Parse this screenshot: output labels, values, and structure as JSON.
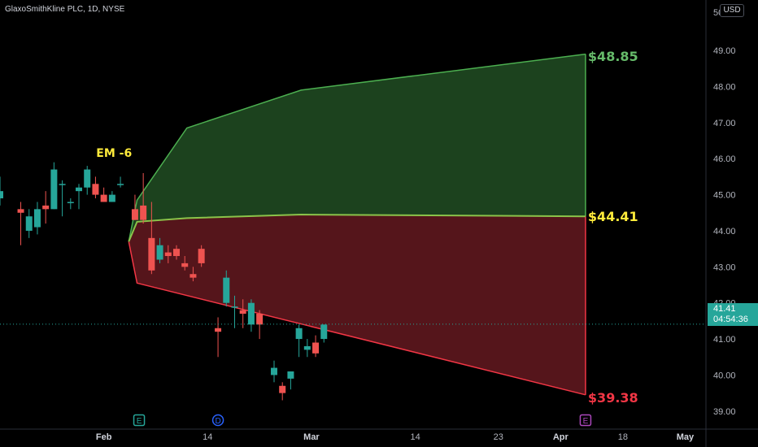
{
  "header": {
    "title": "GlaxoSmithKline PLC, 1D, NYSE",
    "currency": "USD"
  },
  "colors": {
    "background": "#000000",
    "up": "#26a69a",
    "down": "#ef5350",
    "zone_up_fill": "#1e4620",
    "zone_up_line": "#4caf50",
    "zone_down_fill": "#5a161c",
    "zone_down_line": "#f23645",
    "mid_line": "#8bc34a",
    "em_label": "#ffeb3b"
  },
  "chart_data": {
    "type": "candlestick",
    "title": "GlaxoSmithKline PLC, 1D, NYSE",
    "y_axis": {
      "range": [
        38.5,
        50.4
      ],
      "ticks": [
        "39.00",
        "40.00",
        "41.00",
        "42.00",
        "43.00",
        "44.00",
        "45.00",
        "46.00",
        "47.00",
        "48.00",
        "49.00"
      ],
      "top_partial": "50"
    },
    "x_axis": {
      "range": [
        -1,
        33
      ],
      "ticks": [
        {
          "label": "Feb",
          "x": 4,
          "bold": true
        },
        {
          "label": "14",
          "x": 9,
          "bold": false
        },
        {
          "label": "Mar",
          "x": 14,
          "bold": true
        },
        {
          "label": "14",
          "x": 19,
          "bold": false
        },
        {
          "label": "23",
          "x": 23,
          "bold": false
        },
        {
          "label": "Apr",
          "x": 26,
          "bold": true
        },
        {
          "label": "18",
          "x": 29,
          "bold": false
        },
        {
          "label": "May",
          "x": 32,
          "bold": true
        }
      ]
    },
    "candles": [
      {
        "x": -1,
        "o": 44.9,
        "h": 45.5,
        "l": 44.7,
        "c": 45.1
      },
      {
        "x": 0,
        "o": 44.6,
        "h": 44.8,
        "l": 43.6,
        "c": 44.5
      },
      {
        "x": 0.4,
        "o": 44.0,
        "h": 44.6,
        "l": 43.8,
        "c": 44.4
      },
      {
        "x": 0.8,
        "o": 44.1,
        "h": 44.8,
        "l": 43.9,
        "c": 44.6
      },
      {
        "x": 1.2,
        "o": 44.7,
        "h": 45.1,
        "l": 44.2,
        "c": 44.6
      },
      {
        "x": 1.6,
        "o": 44.6,
        "h": 45.9,
        "l": 44.6,
        "c": 45.7
      },
      {
        "x": 2.0,
        "o": 45.3,
        "h": 45.4,
        "l": 44.4,
        "c": 45.3
      },
      {
        "x": 2.4,
        "o": 44.8,
        "h": 44.9,
        "l": 44.6,
        "c": 44.8
      },
      {
        "x": 2.8,
        "o": 45.1,
        "h": 45.3,
        "l": 44.6,
        "c": 45.2
      },
      {
        "x": 3.2,
        "o": 45.2,
        "h": 45.8,
        "l": 45.0,
        "c": 45.7
      },
      {
        "x": 3.6,
        "o": 45.3,
        "h": 45.5,
        "l": 44.9,
        "c": 45.0
      },
      {
        "x": 4.0,
        "o": 45.0,
        "h": 45.2,
        "l": 44.8,
        "c": 44.8
      },
      {
        "x": 4.4,
        "o": 44.8,
        "h": 45.1,
        "l": 44.8,
        "c": 45.0
      },
      {
        "x": 4.8,
        "o": 45.3,
        "h": 45.5,
        "l": 45.2,
        "c": 45.3
      },
      {
        "x": 5.5,
        "o": 44.6,
        "h": 45.0,
        "l": 44.3,
        "c": 44.3
      },
      {
        "x": 5.9,
        "o": 44.7,
        "h": 45.6,
        "l": 44.2,
        "c": 44.3
      },
      {
        "x": 6.3,
        "o": 43.8,
        "h": 44.8,
        "l": 42.8,
        "c": 42.9
      },
      {
        "x": 6.7,
        "o": 43.2,
        "h": 43.8,
        "l": 43.1,
        "c": 43.6
      },
      {
        "x": 7.1,
        "o": 43.4,
        "h": 43.6,
        "l": 43.1,
        "c": 43.3
      },
      {
        "x": 7.5,
        "o": 43.5,
        "h": 43.6,
        "l": 43.2,
        "c": 43.3
      },
      {
        "x": 7.9,
        "o": 43.1,
        "h": 43.3,
        "l": 42.9,
        "c": 43.0
      },
      {
        "x": 8.3,
        "o": 42.8,
        "h": 43.0,
        "l": 42.6,
        "c": 42.7
      },
      {
        "x": 8.7,
        "o": 43.5,
        "h": 43.6,
        "l": 43.0,
        "c": 43.1
      },
      {
        "x": 9.5,
        "o": 41.3,
        "h": 41.6,
        "l": 40.5,
        "c": 41.2
      },
      {
        "x": 9.9,
        "o": 42.0,
        "h": 42.9,
        "l": 41.9,
        "c": 42.7
      },
      {
        "x": 10.3,
        "o": 41.9,
        "h": 42.2,
        "l": 41.3,
        "c": 41.9
      },
      {
        "x": 10.7,
        "o": 41.8,
        "h": 42.1,
        "l": 41.3,
        "c": 41.7
      },
      {
        "x": 11.1,
        "o": 41.4,
        "h": 42.1,
        "l": 41.2,
        "c": 42.0
      },
      {
        "x": 11.5,
        "o": 41.7,
        "h": 41.8,
        "l": 41.0,
        "c": 41.4
      },
      {
        "x": 12.2,
        "o": 40.0,
        "h": 40.4,
        "l": 39.8,
        "c": 40.2
      },
      {
        "x": 12.6,
        "o": 39.7,
        "h": 39.8,
        "l": 39.3,
        "c": 39.5
      },
      {
        "x": 13.0,
        "o": 39.9,
        "h": 40.1,
        "l": 39.6,
        "c": 40.1
      },
      {
        "x": 13.4,
        "o": 41.0,
        "h": 41.4,
        "l": 40.5,
        "c": 41.3
      },
      {
        "x": 13.8,
        "o": 40.7,
        "h": 41.0,
        "l": 40.5,
        "c": 40.8
      },
      {
        "x": 14.2,
        "o": 40.9,
        "h": 41.1,
        "l": 40.5,
        "c": 40.6
      },
      {
        "x": 14.6,
        "o": 41.0,
        "h": 41.4,
        "l": 40.9,
        "c": 41.4
      }
    ],
    "expected_move": {
      "label": "EM -6",
      "start": {
        "x": 5.2,
        "y": 43.7
      },
      "upper": [
        {
          "x": 5.2,
          "y": 43.7
        },
        {
          "x": 5.6,
          "y": 44.85
        },
        {
          "x": 8.0,
          "y": 46.85
        },
        {
          "x": 13.5,
          "y": 47.9
        },
        {
          "x": 27.2,
          "y": 48.9
        }
      ],
      "mid": [
        {
          "x": 5.2,
          "y": 43.7
        },
        {
          "x": 5.6,
          "y": 44.25
        },
        {
          "x": 8.0,
          "y": 44.35
        },
        {
          "x": 13.5,
          "y": 44.45
        },
        {
          "x": 27.2,
          "y": 44.4
        }
      ],
      "lower": [
        {
          "x": 5.2,
          "y": 43.7
        },
        {
          "x": 5.6,
          "y": 42.55
        },
        {
          "x": 27.2,
          "y": 39.45
        }
      ],
      "levels": [
        {
          "label": "$48.85",
          "y": 48.85,
          "color": "#66bb6a"
        },
        {
          "label": "$44.41",
          "y": 44.41,
          "color": "#ffeb3b"
        },
        {
          "label": "$39.38",
          "y": 39.38,
          "color": "#f23645"
        }
      ]
    },
    "current_price": {
      "value": "41.41",
      "countdown": "04:54:36",
      "y": 41.41
    },
    "events": [
      {
        "letter": "E",
        "x": 5.7,
        "color": "#26a69a"
      },
      {
        "letter": "D",
        "x": 9.5,
        "color": "#2962ff"
      },
      {
        "letter": "E",
        "x": 27.2,
        "color": "#ab47bc"
      }
    ]
  }
}
